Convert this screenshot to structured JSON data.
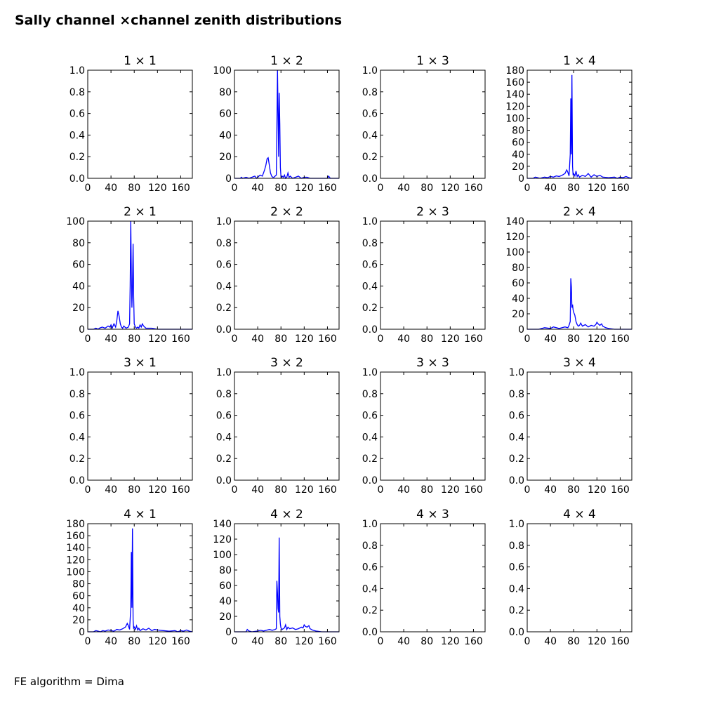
{
  "figure": {
    "title": "Sally channel ×channel zenith distributions",
    "footer": "FE algorithm = Dima",
    "line_color": "#0000ff"
  },
  "chart_data": [
    {
      "type": "line",
      "title": "1  × 1",
      "xlim": [
        0,
        180
      ],
      "ylim": [
        0,
        1.0
      ],
      "xticks": [
        0,
        40,
        80,
        120,
        160
      ],
      "yticks": [
        "0.0",
        "0.2",
        "0.4",
        "0.6",
        "0.8",
        "1.0"
      ],
      "series": []
    },
    {
      "type": "line",
      "title": "1  × 2",
      "xlim": [
        0,
        180
      ],
      "ylim": [
        0,
        100
      ],
      "xticks": [
        0,
        40,
        80,
        120,
        160
      ],
      "yticks": [
        "0",
        "20",
        "40",
        "60",
        "80",
        "100"
      ],
      "series": [
        {
          "x": [
            0,
            10,
            12,
            14,
            20,
            25,
            30,
            35,
            38,
            40,
            44,
            48,
            50,
            52,
            54,
            56,
            58,
            60,
            62,
            64,
            66,
            68,
            70,
            72,
            73,
            74,
            75,
            76,
            77,
            78,
            79,
            80,
            81,
            82,
            84,
            86,
            88,
            90,
            92,
            94,
            96,
            98,
            100,
            105,
            110,
            115,
            120,
            125,
            130,
            140,
            150,
            160,
            162,
            165,
            170,
            180
          ],
          "y": [
            0,
            0,
            1,
            0,
            1,
            0,
            1,
            2,
            0,
            1,
            3,
            2,
            5,
            8,
            12,
            18,
            19,
            12,
            5,
            2,
            1,
            1,
            2,
            3,
            45,
            100,
            60,
            20,
            79,
            50,
            10,
            2,
            1,
            2,
            1,
            3,
            0,
            1,
            5,
            1,
            2,
            1,
            0,
            1,
            2,
            0,
            1,
            1,
            0,
            0,
            0,
            0,
            2,
            0,
            0,
            0
          ]
        }
      ]
    },
    {
      "type": "line",
      "title": "1  × 3",
      "xlim": [
        0,
        180
      ],
      "ylim": [
        0,
        1.0
      ],
      "xticks": [
        0,
        40,
        80,
        120,
        160
      ],
      "yticks": [
        "0.0",
        "0.2",
        "0.4",
        "0.6",
        "0.8",
        "1.0"
      ],
      "series": []
    },
    {
      "type": "line",
      "title": "1  × 4",
      "xlim": [
        0,
        180
      ],
      "ylim": [
        0,
        180
      ],
      "xticks": [
        0,
        40,
        80,
        120,
        160
      ],
      "yticks": [
        "0",
        "20",
        "40",
        "60",
        "80",
        "100",
        "120",
        "140",
        "160",
        "180"
      ],
      "series": [
        {
          "x": [
            0,
            10,
            14,
            18,
            22,
            26,
            30,
            35,
            40,
            45,
            50,
            55,
            60,
            65,
            68,
            70,
            72,
            74,
            75,
            76,
            77,
            78,
            79,
            80,
            82,
            84,
            86,
            88,
            90,
            95,
            100,
            105,
            110,
            115,
            120,
            125,
            130,
            140,
            150,
            155,
            160,
            165,
            170,
            175,
            180
          ],
          "y": [
            0,
            0,
            2,
            1,
            0,
            1,
            2,
            1,
            3,
            2,
            4,
            3,
            5,
            8,
            14,
            10,
            4,
            40,
            133,
            40,
            172,
            20,
            5,
            8,
            4,
            12,
            3,
            6,
            2,
            5,
            3,
            8,
            2,
            6,
            3,
            5,
            2,
            1,
            2,
            0,
            2,
            1,
            3,
            1,
            0
          ]
        }
      ]
    },
    {
      "type": "line",
      "title": "2  × 1",
      "xlim": [
        0,
        180
      ],
      "ylim": [
        0,
        100
      ],
      "xticks": [
        0,
        40,
        80,
        120,
        160
      ],
      "yticks": [
        "0",
        "20",
        "40",
        "60",
        "80",
        "100"
      ],
      "series": [
        {
          "x": [
            0,
            10,
            14,
            18,
            20,
            25,
            30,
            35,
            38,
            40,
            42,
            45,
            48,
            50,
            52,
            54,
            56,
            58,
            60,
            62,
            66,
            70,
            72,
            73,
            74,
            75,
            76,
            77,
            78,
            79,
            80,
            82,
            84,
            86,
            88,
            90,
            92,
            94,
            96,
            98,
            100,
            110,
            120,
            130,
            140,
            150,
            160,
            170,
            180
          ],
          "y": [
            0,
            0,
            1,
            0,
            1,
            2,
            1,
            3,
            2,
            4,
            1,
            5,
            2,
            8,
            17,
            12,
            5,
            2,
            1,
            3,
            1,
            2,
            5,
            40,
            100,
            50,
            20,
            40,
            79,
            30,
            5,
            2,
            1,
            2,
            1,
            4,
            2,
            5,
            3,
            2,
            1,
            1,
            0,
            0,
            0,
            0,
            0,
            0,
            0
          ]
        }
      ]
    },
    {
      "type": "line",
      "title": "2  × 2",
      "xlim": [
        0,
        180
      ],
      "ylim": [
        0,
        1.0
      ],
      "xticks": [
        0,
        40,
        80,
        120,
        160
      ],
      "yticks": [
        "0.0",
        "0.2",
        "0.4",
        "0.6",
        "0.8",
        "1.0"
      ],
      "series": []
    },
    {
      "type": "line",
      "title": "2  × 3",
      "xlim": [
        0,
        180
      ],
      "ylim": [
        0,
        1.0
      ],
      "xticks": [
        0,
        40,
        80,
        120,
        160
      ],
      "yticks": [
        "0.0",
        "0.2",
        "0.4",
        "0.6",
        "0.8",
        "1.0"
      ],
      "series": []
    },
    {
      "type": "line",
      "title": "2  × 4",
      "xlim": [
        0,
        180
      ],
      "ylim": [
        0,
        140
      ],
      "xticks": [
        0,
        40,
        80,
        120,
        160
      ],
      "yticks": [
        "0",
        "20",
        "40",
        "60",
        "80",
        "100",
        "120",
        "140"
      ],
      "series": [
        {
          "x": [
            0,
            10,
            20,
            25,
            30,
            40,
            45,
            50,
            55,
            60,
            65,
            70,
            72,
            74,
            75,
            76,
            77,
            78,
            79,
            80,
            82,
            84,
            86,
            88,
            90,
            92,
            95,
            100,
            105,
            110,
            115,
            118,
            120,
            122,
            125,
            128,
            130,
            135,
            140,
            150,
            160,
            170,
            180
          ],
          "y": [
            0,
            0,
            0,
            1,
            2,
            1,
            3,
            2,
            1,
            2,
            3,
            2,
            5,
            10,
            66,
            55,
            28,
            32,
            25,
            22,
            18,
            10,
            6,
            4,
            5,
            8,
            4,
            6,
            3,
            5,
            4,
            6,
            9,
            7,
            5,
            7,
            4,
            2,
            1,
            0,
            0,
            0,
            0
          ]
        }
      ]
    },
    {
      "type": "line",
      "title": "3  × 1",
      "xlim": [
        0,
        180
      ],
      "ylim": [
        0,
        1.0
      ],
      "xticks": [
        0,
        40,
        80,
        120,
        160
      ],
      "yticks": [
        "0.0",
        "0.2",
        "0.4",
        "0.6",
        "0.8",
        "1.0"
      ],
      "series": []
    },
    {
      "type": "line",
      "title": "3  × 2",
      "xlim": [
        0,
        180
      ],
      "ylim": [
        0,
        1.0
      ],
      "xticks": [
        0,
        40,
        80,
        120,
        160
      ],
      "yticks": [
        "0.0",
        "0.2",
        "0.4",
        "0.6",
        "0.8",
        "1.0"
      ],
      "series": []
    },
    {
      "type": "line",
      "title": "3  × 3",
      "xlim": [
        0,
        180
      ],
      "ylim": [
        0,
        1.0
      ],
      "xticks": [
        0,
        40,
        80,
        120,
        160
      ],
      "yticks": [
        "0.0",
        "0.2",
        "0.4",
        "0.6",
        "0.8",
        "1.0"
      ],
      "series": []
    },
    {
      "type": "line",
      "title": "3  × 4",
      "xlim": [
        0,
        180
      ],
      "ylim": [
        0,
        1.0
      ],
      "xticks": [
        0,
        40,
        80,
        120,
        160
      ],
      "yticks": [
        "0.0",
        "0.2",
        "0.4",
        "0.6",
        "0.8",
        "1.0"
      ],
      "series": []
    },
    {
      "type": "line",
      "title": "4  × 1",
      "xlim": [
        0,
        180
      ],
      "ylim": [
        0,
        180
      ],
      "xticks": [
        0,
        40,
        80,
        120,
        160
      ],
      "yticks": [
        "0",
        "20",
        "40",
        "60",
        "80",
        "100",
        "120",
        "140",
        "160",
        "180"
      ],
      "series": [
        {
          "x": [
            0,
            10,
            14,
            18,
            22,
            26,
            30,
            35,
            40,
            45,
            50,
            55,
            60,
            65,
            68,
            70,
            72,
            74,
            75,
            76,
            77,
            78,
            79,
            80,
            82,
            84,
            86,
            88,
            90,
            95,
            100,
            105,
            110,
            115,
            120,
            130,
            140,
            150,
            155,
            160,
            165,
            170,
            175,
            180
          ],
          "y": [
            0,
            0,
            2,
            1,
            0,
            2,
            1,
            3,
            2,
            1,
            4,
            3,
            5,
            8,
            14,
            10,
            4,
            40,
            133,
            40,
            172,
            20,
            5,
            8,
            4,
            10,
            3,
            6,
            2,
            5,
            3,
            6,
            2,
            4,
            3,
            2,
            1,
            2,
            0,
            2,
            1,
            3,
            1,
            0
          ]
        }
      ]
    },
    {
      "type": "line",
      "title": "4  × 2",
      "xlim": [
        0,
        180
      ],
      "ylim": [
        0,
        140
      ],
      "xticks": [
        0,
        40,
        80,
        120,
        160
      ],
      "yticks": [
        "0",
        "20",
        "40",
        "60",
        "80",
        "100",
        "120",
        "140"
      ],
      "series": [
        {
          "x": [
            0,
            10,
            20,
            22,
            25,
            30,
            40,
            45,
            50,
            55,
            60,
            65,
            70,
            72,
            73,
            74,
            75,
            76,
            77,
            78,
            79,
            80,
            82,
            84,
            86,
            88,
            90,
            92,
            95,
            100,
            105,
            110,
            115,
            118,
            120,
            122,
            125,
            128,
            130,
            135,
            140,
            150,
            160,
            170,
            180
          ],
          "y": [
            0,
            0,
            0,
            3,
            1,
            0,
            1,
            2,
            1,
            2,
            3,
            2,
            3,
            4,
            66,
            50,
            30,
            25,
            122,
            20,
            10,
            5,
            3,
            4,
            5,
            9,
            3,
            6,
            4,
            5,
            3,
            4,
            6,
            5,
            9,
            7,
            6,
            8,
            4,
            2,
            1,
            0,
            0,
            0,
            0
          ]
        }
      ]
    },
    {
      "type": "line",
      "title": "4  × 3",
      "xlim": [
        0,
        180
      ],
      "ylim": [
        0,
        1.0
      ],
      "xticks": [
        0,
        40,
        80,
        120,
        160
      ],
      "yticks": [
        "0.0",
        "0.2",
        "0.4",
        "0.6",
        "0.8",
        "1.0"
      ],
      "series": []
    },
    {
      "type": "line",
      "title": "4  × 4",
      "xlim": [
        0,
        180
      ],
      "ylim": [
        0,
        1.0
      ],
      "xticks": [
        0,
        40,
        80,
        120,
        160
      ],
      "yticks": [
        "0.0",
        "0.2",
        "0.4",
        "0.6",
        "0.8",
        "1.0"
      ],
      "series": []
    }
  ]
}
